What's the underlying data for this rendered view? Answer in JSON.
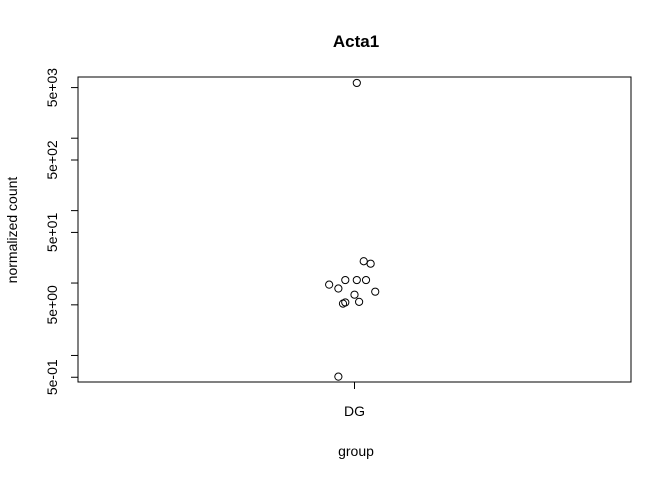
{
  "chart_data": {
    "type": "scatter",
    "title": "Acta1",
    "xlabel": "group",
    "ylabel": "normalized count",
    "y_scale": "log",
    "categories": [
      "DG"
    ],
    "y_tick_values": [
      0.5,
      5,
      50,
      500,
      5000
    ],
    "y_tick_labels": [
      "5e-01",
      "5e+00",
      "5e+01",
      "5e+02",
      "5e+03"
    ],
    "y_minor_tick_values": [
      1,
      10,
      100,
      1000
    ],
    "ylim": [
      0.43,
      7000
    ],
    "xlim": [
      0.4,
      1.6
    ],
    "grid": false,
    "legend": "none",
    "points": [
      {
        "category": "DG",
        "jitter": 0.005,
        "y": 5800
      },
      {
        "category": "DG",
        "jitter": 0.02,
        "y": 20
      },
      {
        "category": "DG",
        "jitter": 0.035,
        "y": 18.5
      },
      {
        "category": "DG",
        "jitter": -0.02,
        "y": 11
      },
      {
        "category": "DG",
        "jitter": 0.005,
        "y": 11
      },
      {
        "category": "DG",
        "jitter": 0.025,
        "y": 11
      },
      {
        "category": "DG",
        "jitter": -0.055,
        "y": 9.5
      },
      {
        "category": "DG",
        "jitter": -0.035,
        "y": 8.4
      },
      {
        "category": "DG",
        "jitter": 0.045,
        "y": 7.6
      },
      {
        "category": "DG",
        "jitter": 0.0,
        "y": 6.9
      },
      {
        "category": "DG",
        "jitter": 0.01,
        "y": 5.5
      },
      {
        "category": "DG",
        "jitter": -0.02,
        "y": 5.4
      },
      {
        "category": "DG",
        "jitter": -0.025,
        "y": 5.2
      },
      {
        "category": "DG",
        "jitter": -0.035,
        "y": 0.51
      }
    ]
  }
}
